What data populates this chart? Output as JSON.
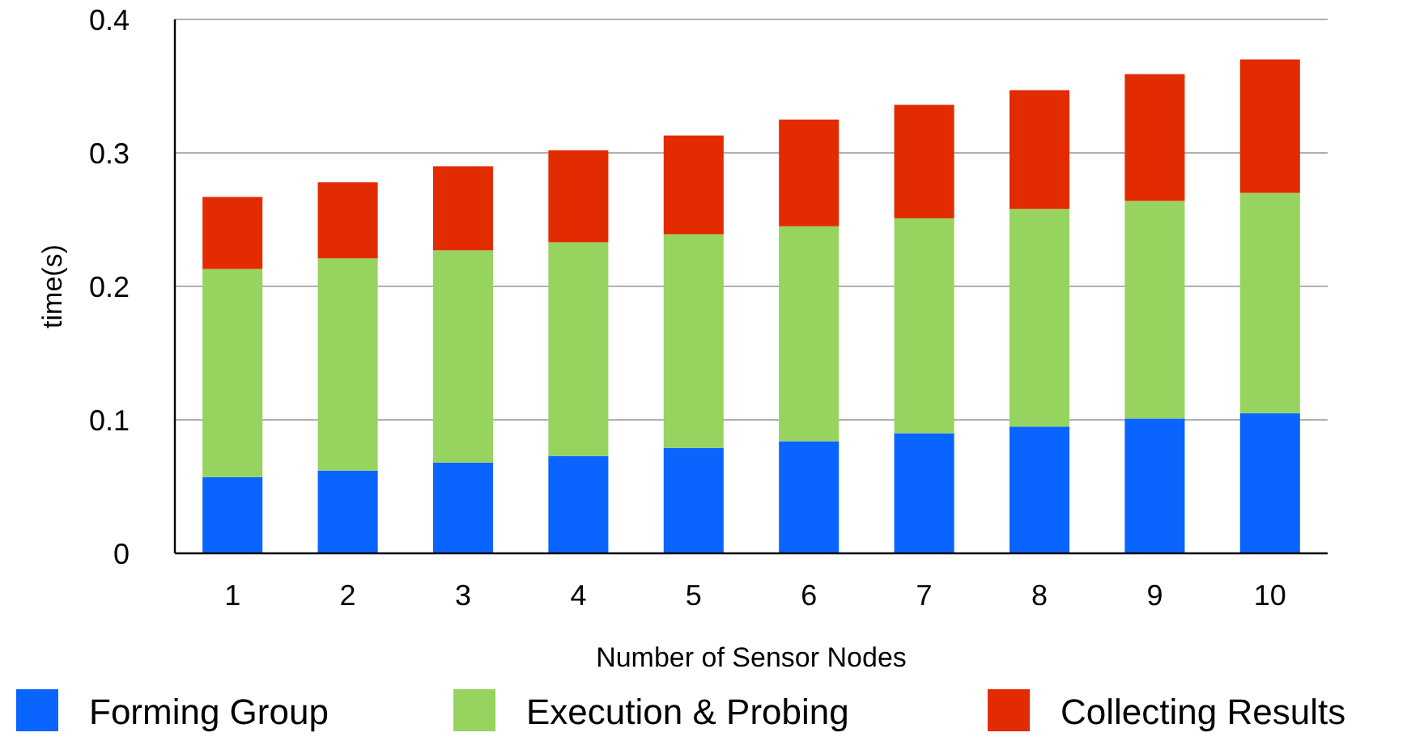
{
  "chart_data": {
    "type": "bar",
    "stacked": true,
    "xlabel": "Number of Sensor Nodes",
    "ylabel": "time(s)",
    "categories": [
      "1",
      "2",
      "3",
      "4",
      "5",
      "6",
      "7",
      "8",
      "9",
      "10"
    ],
    "series": [
      {
        "name": "Forming Group",
        "color": "#0a64ff",
        "values": [
          0.057,
          0.062,
          0.068,
          0.073,
          0.079,
          0.084,
          0.09,
          0.095,
          0.101,
          0.105
        ]
      },
      {
        "name": "Execution & Probing",
        "color": "#96d35f",
        "values": [
          0.156,
          0.159,
          0.159,
          0.16,
          0.16,
          0.161,
          0.161,
          0.163,
          0.163,
          0.165
        ]
      },
      {
        "name": "Collecting Results",
        "color": "#e22c00",
        "values": [
          0.054,
          0.057,
          0.063,
          0.069,
          0.074,
          0.08,
          0.085,
          0.089,
          0.095,
          0.1
        ]
      }
    ],
    "ylim": [
      0,
      0.4
    ],
    "yticks": [
      0,
      0.1,
      0.2,
      0.3,
      0.4
    ],
    "grid": "y",
    "legend": "bottom"
  }
}
